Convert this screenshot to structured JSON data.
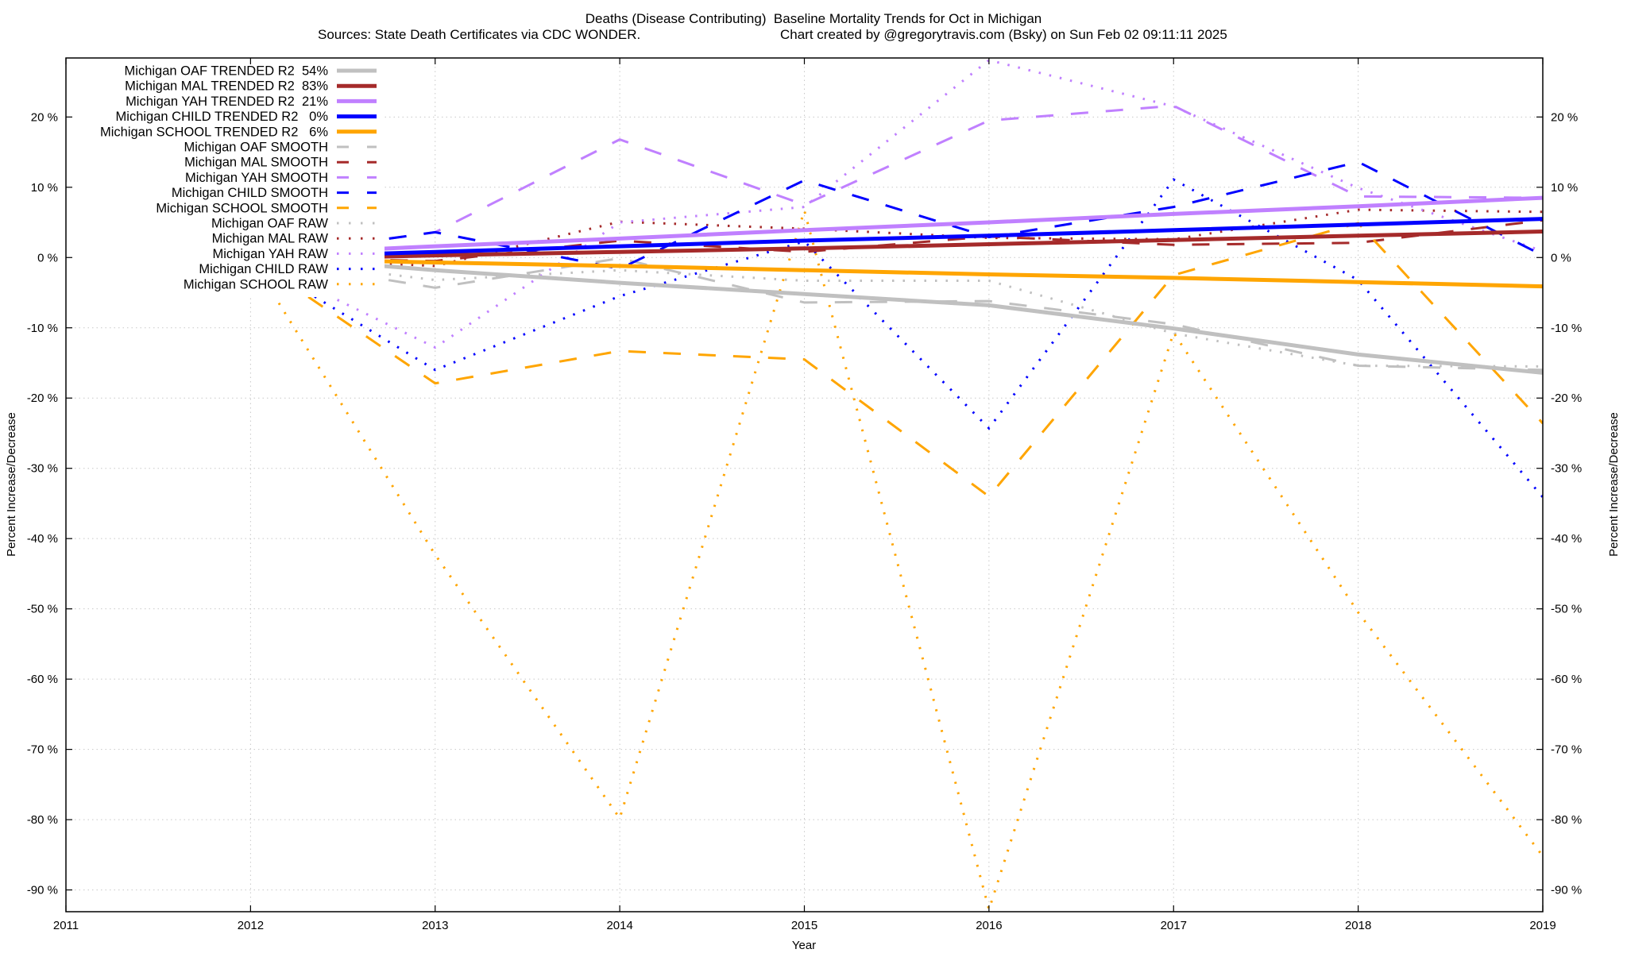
{
  "chart_data": {
    "type": "line",
    "title": "Deaths (Disease Contributing)  Baseline Mortality Trends for Oct in Michigan",
    "subtitle_left": "Sources: State Death Certificates via CDC WONDER.",
    "subtitle_right": "Chart created by @gregorytravis.com (Bsky) on Sun Feb 02 09:11:11 2025",
    "xlabel": "Year",
    "ylabel": "Percent Increase/Decrease",
    "y2label": "Percent Increase/Decrease",
    "xlim": [
      2011,
      2019
    ],
    "ylim": [
      -93.1,
      28.4
    ],
    "x_ticks": [
      "2011",
      "2012",
      "2013",
      "2014",
      "2015",
      "2016",
      "2017",
      "2018",
      "2019"
    ],
    "y_ticks": [
      {
        "v": 20,
        "label": "20 %"
      },
      {
        "v": 10,
        "label": "10 %"
      },
      {
        "v": 0,
        "label": "0 %"
      },
      {
        "v": -10,
        "label": "-10 %"
      },
      {
        "v": -20,
        "label": "-20 %"
      },
      {
        "v": -30,
        "label": "-30 %"
      },
      {
        "v": -40,
        "label": "-40 %"
      },
      {
        "v": -50,
        "label": "-50 %"
      },
      {
        "v": -60,
        "label": "-60 %"
      },
      {
        "v": -70,
        "label": "-70 %"
      },
      {
        "v": -80,
        "label": "-80 %"
      },
      {
        "v": -90,
        "label": "-90 %"
      }
    ],
    "grid": true,
    "legend_position": "top-left",
    "x": [
      2012,
      2013,
      2014,
      2015,
      2016,
      2017,
      2018,
      2019
    ],
    "series": [
      {
        "name": "Michigan OAF TRENDED R2  54%",
        "style": "trend",
        "color": "#c0c0c0",
        "values": [
          0.3,
          -1.8,
          -3.6,
          -5.2,
          -6.8,
          -10.1,
          -13.8,
          -16.4
        ]
      },
      {
        "name": "Michigan MAL TRENDED R2  83%",
        "style": "trend",
        "color": "#a52a2a",
        "values": [
          -0.3,
          0.3,
          0.8,
          1.3,
          1.9,
          2.5,
          3.1,
          3.7
        ]
      },
      {
        "name": "Michigan YAH TRENDED R2  21%",
        "style": "trend",
        "color": "#c080ff",
        "values": [
          0.4,
          1.6,
          2.7,
          3.9,
          5.0,
          6.2,
          7.3,
          8.5
        ]
      },
      {
        "name": "Michigan CHILD TRENDED R2   0%",
        "style": "trend",
        "color": "#0000ff",
        "values": [
          0.0,
          0.8,
          1.6,
          2.4,
          3.1,
          3.9,
          4.7,
          5.5
        ]
      },
      {
        "name": "Michigan SCHOOL TRENDED R2   6%",
        "style": "trend",
        "color": "#ffa500",
        "values": [
          -0.1,
          -0.7,
          -1.2,
          -1.8,
          -2.4,
          -2.9,
          -3.5,
          -4.1
        ]
      },
      {
        "name": "Michigan OAF SMOOTH",
        "style": "smooth",
        "color": "#c0c0c0",
        "values": [
          0,
          -4.3,
          -0.1,
          -6.4,
          -6.2,
          -9.5,
          -15.4,
          -16.0
        ]
      },
      {
        "name": "Michigan MAL SMOOTH",
        "style": "smooth",
        "color": "#a52a2a",
        "values": [
          0,
          -0.5,
          2.4,
          0.8,
          3.0,
          1.8,
          2.1,
          5.3
        ]
      },
      {
        "name": "Michigan YAH SMOOTH",
        "style": "smooth",
        "color": "#c080ff",
        "values": [
          0,
          3.6,
          16.8,
          7.5,
          19.5,
          21.6,
          8.7,
          8.5
        ]
      },
      {
        "name": "Michigan CHILD SMOOTH",
        "style": "smooth",
        "color": "#0000ff",
        "values": [
          0,
          3.6,
          -1.6,
          11.0,
          2.9,
          7.2,
          13.6,
          0.3
        ]
      },
      {
        "name": "Michigan SCHOOL SMOOTH",
        "style": "smooth",
        "color": "#ffa500",
        "values": [
          0,
          -17.9,
          -13.3,
          -14.5,
          -34.0,
          -2.5,
          4.9,
          -23.6
        ]
      },
      {
        "name": "Michigan OAF RAW",
        "style": "raw",
        "color": "#c0c0c0",
        "values": [
          0,
          -3.2,
          -1.8,
          -3.3,
          -3.3,
          -10.8,
          -15.4,
          -15.5
        ]
      },
      {
        "name": "Michigan MAL RAW",
        "style": "raw",
        "color": "#a52a2a",
        "values": [
          0,
          -1.2,
          5.1,
          4.1,
          2.8,
          2.6,
          6.8,
          6.5
        ]
      },
      {
        "name": "Michigan YAH RAW",
        "style": "raw",
        "color": "#c080ff",
        "values": [
          0,
          -12.8,
          5.0,
          7.2,
          28.1,
          21.5,
          9.9,
          0.9
        ]
      },
      {
        "name": "Michigan CHILD RAW",
        "style": "raw",
        "color": "#0000ff",
        "values": [
          0,
          -16.0,
          -5.5,
          2.3,
          -24.3,
          11.1,
          -3.2,
          -34.1
        ]
      },
      {
        "name": "Michigan SCHOOL RAW",
        "style": "raw",
        "color": "#ffa500",
        "values": [
          0,
          -42.3,
          -79.8,
          6.7,
          -92.8,
          -10.7,
          -50.5,
          -85.2
        ]
      }
    ]
  }
}
